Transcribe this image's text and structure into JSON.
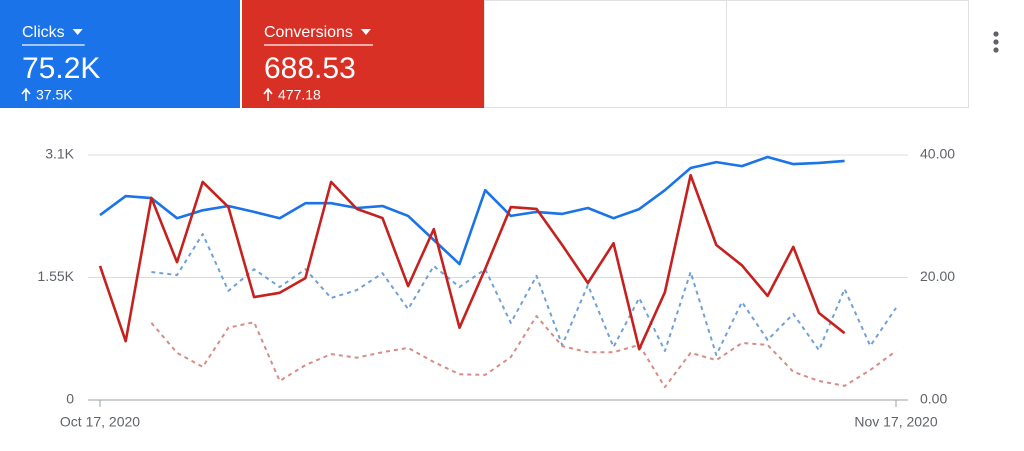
{
  "metrics": [
    {
      "label": "Clicks",
      "value": "75.2K",
      "change": "37.5K",
      "color": "#1a73e8"
    },
    {
      "label": "Conversions",
      "value": "688.53",
      "change": "477.18",
      "color": "#d93025"
    }
  ],
  "chart_data": {
    "type": "line",
    "categories": [
      "Oct 17, 2020",
      null,
      null,
      null,
      null,
      null,
      null,
      null,
      null,
      null,
      null,
      null,
      null,
      null,
      null,
      null,
      null,
      null,
      null,
      null,
      null,
      null,
      null,
      null,
      null,
      null,
      null,
      null,
      null,
      null,
      null,
      "Nov 17, 2020"
    ],
    "series": [
      {
        "color": "#1a73e8",
        "dashed": false,
        "axis": "y",
        "values": [
          2340,
          2580,
          2555,
          2300,
          2400,
          2455,
          2380,
          2300,
          2490,
          2490,
          2430,
          2455,
          2330,
          2025,
          1720,
          2655,
          2330,
          2380,
          2355,
          2430,
          2300,
          2415,
          2655,
          2935,
          3010,
          2960,
          3075,
          2985,
          3000,
          3025,
          null,
          null
        ]
      },
      {
        "color": "#c5221f",
        "dashed": false,
        "axis": "y2",
        "values": [
          21.9,
          9.6,
          33.0,
          22.5,
          35.6,
          31.5,
          16.8,
          17.5,
          19.9,
          35.6,
          31.2,
          29.7,
          18.6,
          27.9,
          11.8,
          21.4,
          31.5,
          31.2,
          25.3,
          19.1,
          25.6,
          8.3,
          17.6,
          36.7,
          25.3,
          22.0,
          17.0,
          25.0,
          14.2,
          10.9,
          null,
          null
        ]
      },
      {
        "color": "#6fa1d8",
        "dashed": true,
        "axis": "y",
        "values": [
          null,
          null,
          1620,
          1580,
          2100,
          1380,
          1655,
          1430,
          1655,
          1290,
          1390,
          1605,
          1150,
          1695,
          1430,
          1655,
          975,
          1570,
          695,
          1455,
          670,
          1290,
          620,
          1620,
          570,
          1240,
          760,
          1090,
          630,
          1405,
          685,
          1165
        ]
      },
      {
        "color": "#d98b85",
        "dashed": true,
        "axis": "y2",
        "values": [
          null,
          null,
          12.6,
          7.7,
          5.4,
          11.8,
          12.7,
          3.1,
          5.7,
          7.5,
          6.9,
          7.8,
          8.5,
          6.2,
          4.2,
          4.1,
          7.0,
          13.7,
          8.8,
          7.8,
          7.8,
          9.0,
          2.1,
          7.7,
          6.5,
          9.3,
          9.0,
          4.6,
          3.1,
          2.3,
          4.9,
          8.0
        ]
      }
    ],
    "ylim": [
      0,
      3100
    ],
    "yticks": [
      0,
      {
        "value": 1550,
        "label": "1.55K"
      },
      {
        "value": 3100,
        "label": "3.1K"
      }
    ],
    "y2lim": [
      0,
      40
    ],
    "y2ticks": [
      {
        "value": 0,
        "label": "0.00"
      },
      {
        "value": 20,
        "label": "20.00"
      },
      {
        "value": 40,
        "label": "40.00"
      }
    ],
    "grid": true
  }
}
